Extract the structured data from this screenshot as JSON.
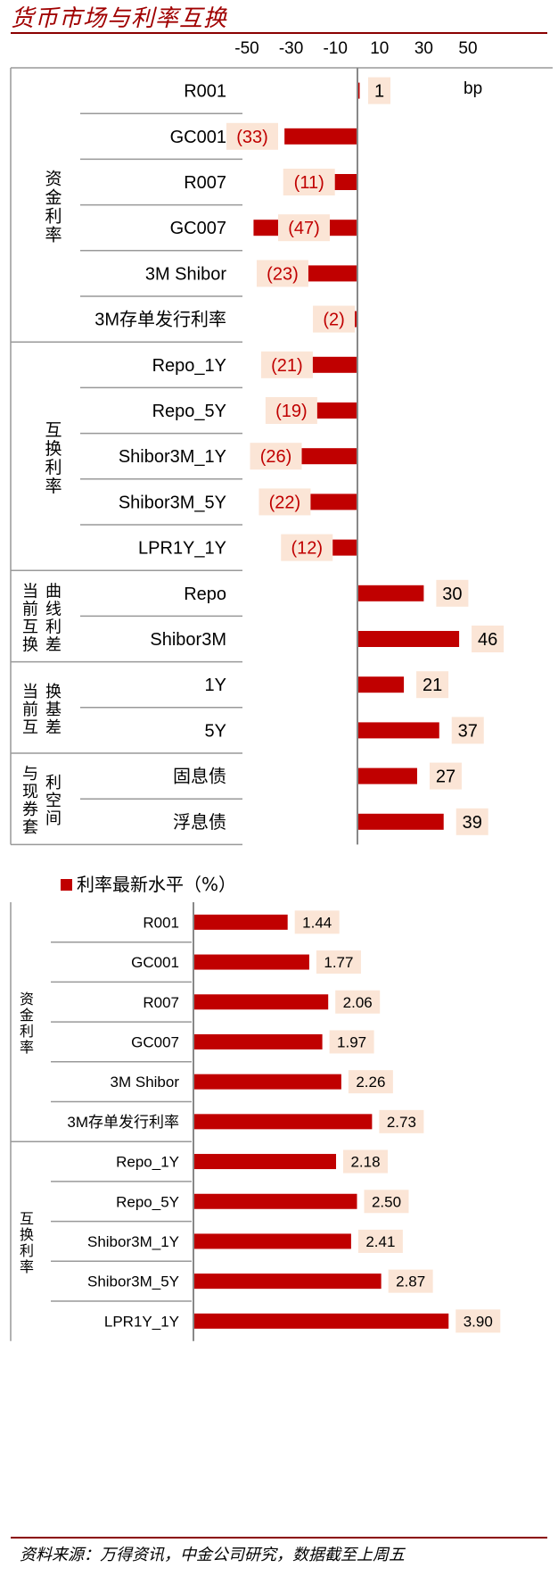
{
  "page": {
    "title": "货币市场与利率互换",
    "source": "资料来源：万得资讯，中金公司研究，数据截至上周五"
  },
  "chart_data": [
    {
      "type": "bar",
      "orientation": "horizontal",
      "unit": "bp",
      "xlim": [
        -50,
        50
      ],
      "xticks": [
        "-50",
        "-30",
        "-10",
        "10",
        "30",
        "50"
      ],
      "categories": [
        "R001",
        "GC001",
        "R007",
        "GC007",
        "3M Shibor",
        "3M存单发行利率",
        "Repo_1Y",
        "Repo_5Y",
        "Shibor3M_1Y",
        "Shibor3M_5Y",
        "LPR1Y_1Y",
        "Repo",
        "Shibor3M",
        "1Y",
        "5Y",
        "固息债",
        "浮息债"
      ],
      "values": [
        1,
        -33,
        -11,
        -47,
        -23,
        -2,
        -21,
        -19,
        -26,
        -22,
        -12,
        30,
        46,
        21,
        37,
        27,
        39
      ],
      "value_labels": [
        "1",
        "(33)",
        "(11)",
        "(47)",
        "(23)",
        "(2)",
        "(21)",
        "(19)",
        "(26)",
        "(22)",
        "(12)",
        "30",
        "46",
        "21",
        "37",
        "27",
        "39"
      ],
      "groups": [
        {
          "name": "资金利率",
          "start": 0,
          "end": 5
        },
        {
          "name": "互换利率",
          "start": 6,
          "end": 10
        },
        {
          "name": "当前互换曲线利差",
          "start": 11,
          "end": 12
        },
        {
          "name": "当前互换基差",
          "start": 13,
          "end": 14
        },
        {
          "name": "与现券套利空间",
          "start": 15,
          "end": 16
        }
      ],
      "colors": {
        "bar": "#c00000",
        "label_bg": "#fbe5d6",
        "negative_label": "#c00000",
        "positive_label": "#000000"
      }
    },
    {
      "type": "bar",
      "orientation": "horizontal",
      "legend": "利率最新水平（%）",
      "xlim": [
        0,
        4.0
      ],
      "categories": [
        "R001",
        "GC001",
        "R007",
        "GC007",
        "3M Shibor",
        "3M存单发行利率",
        "Repo_1Y",
        "Repo_5Y",
        "Shibor3M_1Y",
        "Shibor3M_5Y",
        "LPR1Y_1Y"
      ],
      "values": [
        1.44,
        1.77,
        2.06,
        1.97,
        2.26,
        2.73,
        2.18,
        2.5,
        2.41,
        2.87,
        3.9
      ],
      "value_labels": [
        "1.44",
        "1.77",
        "2.06",
        "1.97",
        "2.26",
        "2.73",
        "2.18",
        "2.50",
        "2.41",
        "2.87",
        "3.90"
      ],
      "groups": [
        {
          "name": "资金利率",
          "start": 0,
          "end": 5
        },
        {
          "name": "互换利率",
          "start": 6,
          "end": 10
        }
      ],
      "colors": {
        "bar": "#c00000",
        "label_bg": "#fbe5d6"
      }
    }
  ]
}
